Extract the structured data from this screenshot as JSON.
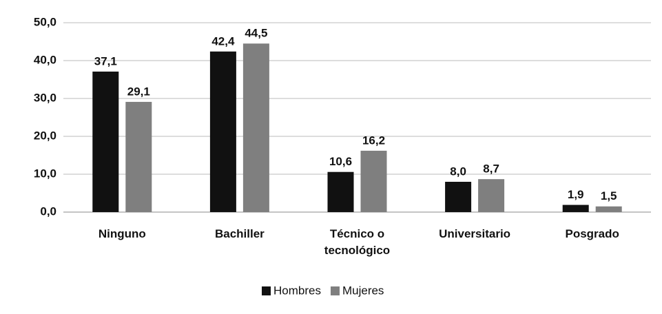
{
  "chart_data": {
    "type": "bar",
    "categories": [
      "Ninguno",
      "Bachiller",
      "Técnico o tecnológico",
      "Universitario",
      "Posgrado"
    ],
    "series": [
      {
        "name": "Hombres",
        "color": "#111111",
        "values": [
          37.1,
          42.4,
          10.6,
          8.0,
          1.9
        ],
        "value_labels": [
          "37,1",
          "42,4",
          "10,6",
          "8,0",
          "1,9"
        ]
      },
      {
        "name": "Mujeres",
        "color": "#7f7f7f",
        "values": [
          29.1,
          44.5,
          16.2,
          8.7,
          1.5
        ],
        "value_labels": [
          "29,1",
          "44,5",
          "16,2",
          "8,7",
          "1,5"
        ]
      }
    ],
    "ylim": [
      0,
      50
    ],
    "yticks": [
      {
        "value": 0,
        "label": "0,0"
      },
      {
        "value": 10,
        "label": "10,0"
      },
      {
        "value": 20,
        "label": "20,0"
      },
      {
        "value": 30,
        "label": "30,0"
      },
      {
        "value": 40,
        "label": "40,0"
      },
      {
        "value": 50,
        "label": "50,0"
      }
    ],
    "grid": true,
    "legend": "bottom"
  }
}
